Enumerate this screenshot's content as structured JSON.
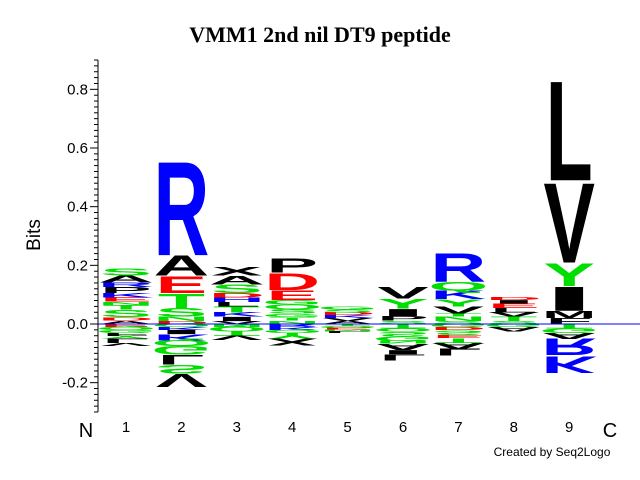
{
  "chart_data": {
    "type": "sequence-logo",
    "title": "VMM1 2nd nil DT9 peptide",
    "ylabel": "Bits",
    "ylim": [
      -0.3,
      0.9
    ],
    "yticks": [
      -0.2,
      0.0,
      0.2,
      0.4,
      0.6,
      0.8
    ],
    "ytick_labels": [
      "-0.2",
      "0.0",
      "0.2",
      "0.4",
      "0.6",
      "0.8"
    ],
    "positions": [
      "1",
      "2",
      "3",
      "4",
      "5",
      "6",
      "7",
      "8",
      "9"
    ],
    "n_label": "N",
    "c_label": "C",
    "credit": "Created by Seq2Logo",
    "colors": {
      "acidic": "#ff0000",
      "basic": "#0000ff",
      "polar": "#00dd00",
      "hydrophobic": "#000000",
      "baseline": "#0000ff"
    },
    "columns": [
      {
        "pos": "1",
        "positive": [
          {
            "aa": "A",
            "h": 0.012
          },
          {
            "aa": "D",
            "h": 0.012
          },
          {
            "aa": "S",
            "h": 0.025
          },
          {
            "aa": "T",
            "h": 0.015
          },
          {
            "aa": "N",
            "h": 0.012
          },
          {
            "aa": "E",
            "h": 0.015
          },
          {
            "aa": "K",
            "h": 0.015
          },
          {
            "aa": "P",
            "h": 0.02
          },
          {
            "aa": "R",
            "h": 0.015
          },
          {
            "aa": "A",
            "h": 0.025
          },
          {
            "aa": "S",
            "h": 0.025
          }
        ],
        "negative": [
          {
            "aa": "E",
            "h": 0.01
          },
          {
            "aa": "Q",
            "h": 0.01
          },
          {
            "aa": "G",
            "h": 0.01
          },
          {
            "aa": "F",
            "h": 0.01
          },
          {
            "aa": "Y",
            "h": 0.01
          },
          {
            "aa": "L",
            "h": 0.015
          },
          {
            "aa": "V",
            "h": 0.01
          }
        ]
      },
      {
        "pos": "2",
        "positive": [
          {
            "aa": "D",
            "h": 0.01
          },
          {
            "aa": "N",
            "h": 0.015
          },
          {
            "aa": "S",
            "h": 0.03
          },
          {
            "aa": "T",
            "h": 0.05
          },
          {
            "aa": "E",
            "h": 0.06
          },
          {
            "aa": "A",
            "h": 0.07
          },
          {
            "aa": "R",
            "h": 0.33
          }
        ],
        "negative": [
          {
            "aa": "Q",
            "h": 0.01
          },
          {
            "aa": "K",
            "h": 0.01
          },
          {
            "aa": "I",
            "h": 0.015
          },
          {
            "aa": "K",
            "h": 0.02
          },
          {
            "aa": "Q",
            "h": 0.02
          },
          {
            "aa": "G",
            "h": 0.03
          },
          {
            "aa": "L",
            "h": 0.035
          },
          {
            "aa": "S",
            "h": 0.03
          },
          {
            "aa": "V",
            "h": 0.045
          }
        ]
      },
      {
        "pos": "3",
        "positive": [
          {
            "aa": "V",
            "h": 0.01
          },
          {
            "aa": "I",
            "h": 0.015
          },
          {
            "aa": "K",
            "h": 0.015
          },
          {
            "aa": "T",
            "h": 0.02
          },
          {
            "aa": "L",
            "h": 0.015
          },
          {
            "aa": "H",
            "h": 0.015
          },
          {
            "aa": "D",
            "h": 0.015
          },
          {
            "aa": "S",
            "h": 0.03
          },
          {
            "aa": "A",
            "h": 0.03
          },
          {
            "aa": "X",
            "h": 0.03
          }
        ],
        "negative": [
          {
            "aa": "N",
            "h": 0.01
          },
          {
            "aa": "Q",
            "h": 0.015
          },
          {
            "aa": "T",
            "h": 0.015
          },
          {
            "aa": "V",
            "h": 0.015
          }
        ]
      },
      {
        "pos": "4",
        "positive": [
          {
            "aa": "N",
            "h": 0.012
          },
          {
            "aa": "T",
            "h": 0.012
          },
          {
            "aa": "G",
            "h": 0.012
          },
          {
            "aa": "S",
            "h": 0.015
          },
          {
            "aa": "Q",
            "h": 0.015
          },
          {
            "aa": "G",
            "h": 0.015
          },
          {
            "aa": "E",
            "h": 0.035
          },
          {
            "aa": "D",
            "h": 0.06
          },
          {
            "aa": "P",
            "h": 0.05
          }
        ],
        "negative": [
          {
            "aa": "R",
            "h": 0.01
          },
          {
            "aa": "K",
            "h": 0.01
          },
          {
            "aa": "Q",
            "h": 0.01
          },
          {
            "aa": "Y",
            "h": 0.02
          },
          {
            "aa": "X",
            "h": 0.025
          }
        ]
      },
      {
        "pos": "5",
        "positive": [
          {
            "aa": "A",
            "h": 0.01
          },
          {
            "aa": "V",
            "h": 0.01
          },
          {
            "aa": "K",
            "h": 0.01
          },
          {
            "aa": "D",
            "h": 0.01
          },
          {
            "aa": "S",
            "h": 0.01
          },
          {
            "aa": "G",
            "h": 0.01
          }
        ],
        "negative": [
          {
            "aa": "T",
            "h": 0.006
          },
          {
            "aa": "Q",
            "h": 0.006
          },
          {
            "aa": "E",
            "h": 0.006
          },
          {
            "aa": "N",
            "h": 0.006
          },
          {
            "aa": "L",
            "h": 0.006
          }
        ]
      },
      {
        "pos": "6",
        "positive": [
          {
            "aa": "S",
            "h": 0.012
          },
          {
            "aa": "P",
            "h": 0.015
          },
          {
            "aa": "I",
            "h": 0.025
          },
          {
            "aa": "Y",
            "h": 0.035
          },
          {
            "aa": "V",
            "h": 0.04
          }
        ],
        "negative": [
          {
            "aa": "T",
            "h": 0.015
          },
          {
            "aa": "Q",
            "h": 0.012
          },
          {
            "aa": "S",
            "h": 0.015
          },
          {
            "aa": "G",
            "h": 0.015
          },
          {
            "aa": "N",
            "h": 0.012
          },
          {
            "aa": "A",
            "h": 0.02
          },
          {
            "aa": "I",
            "h": 0.015
          },
          {
            "aa": "L",
            "h": 0.02
          }
        ]
      },
      {
        "pos": "7",
        "positive": [
          {
            "aa": "S",
            "h": 0.01
          },
          {
            "aa": "N",
            "h": 0.015
          },
          {
            "aa": "T",
            "h": 0.01
          },
          {
            "aa": "V",
            "h": 0.025
          },
          {
            "aa": "Y",
            "h": 0.025
          },
          {
            "aa": "K",
            "h": 0.03
          },
          {
            "aa": "Q",
            "h": 0.03
          },
          {
            "aa": "R",
            "h": 0.1
          }
        ],
        "negative": [
          {
            "aa": "G",
            "h": 0.01
          },
          {
            "aa": "D",
            "h": 0.012
          },
          {
            "aa": "S",
            "h": 0.015
          },
          {
            "aa": "E",
            "h": 0.012
          },
          {
            "aa": "T",
            "h": 0.015
          },
          {
            "aa": "A",
            "h": 0.02
          },
          {
            "aa": "L",
            "h": 0.025
          }
        ]
      },
      {
        "pos": "8",
        "positive": [
          {
            "aa": "S",
            "h": 0.01
          },
          {
            "aa": "T",
            "h": 0.015
          },
          {
            "aa": "V",
            "h": 0.015
          },
          {
            "aa": "L",
            "h": 0.015
          },
          {
            "aa": "E",
            "h": 0.015
          },
          {
            "aa": "I",
            "h": 0.012
          },
          {
            "aa": "D",
            "h": 0.01
          }
        ],
        "negative": [
          {
            "aa": "G",
            "h": 0.01
          },
          {
            "aa": "A",
            "h": 0.015
          }
        ]
      },
      {
        "pos": "9",
        "positive": [
          {
            "aa": "F",
            "h": 0.02
          },
          {
            "aa": "M",
            "h": 0.025
          },
          {
            "aa": "I",
            "h": 0.085
          },
          {
            "aa": "Y",
            "h": 0.08
          },
          {
            "aa": "V",
            "h": 0.28
          },
          {
            "aa": "L",
            "h": 0.35
          }
        ],
        "negative": [
          {
            "aa": "T",
            "h": 0.015
          },
          {
            "aa": "G",
            "h": 0.015
          },
          {
            "aa": "A",
            "h": 0.02
          },
          {
            "aa": "R",
            "h": 0.06
          },
          {
            "aa": "K",
            "h": 0.06
          }
        ]
      }
    ]
  }
}
